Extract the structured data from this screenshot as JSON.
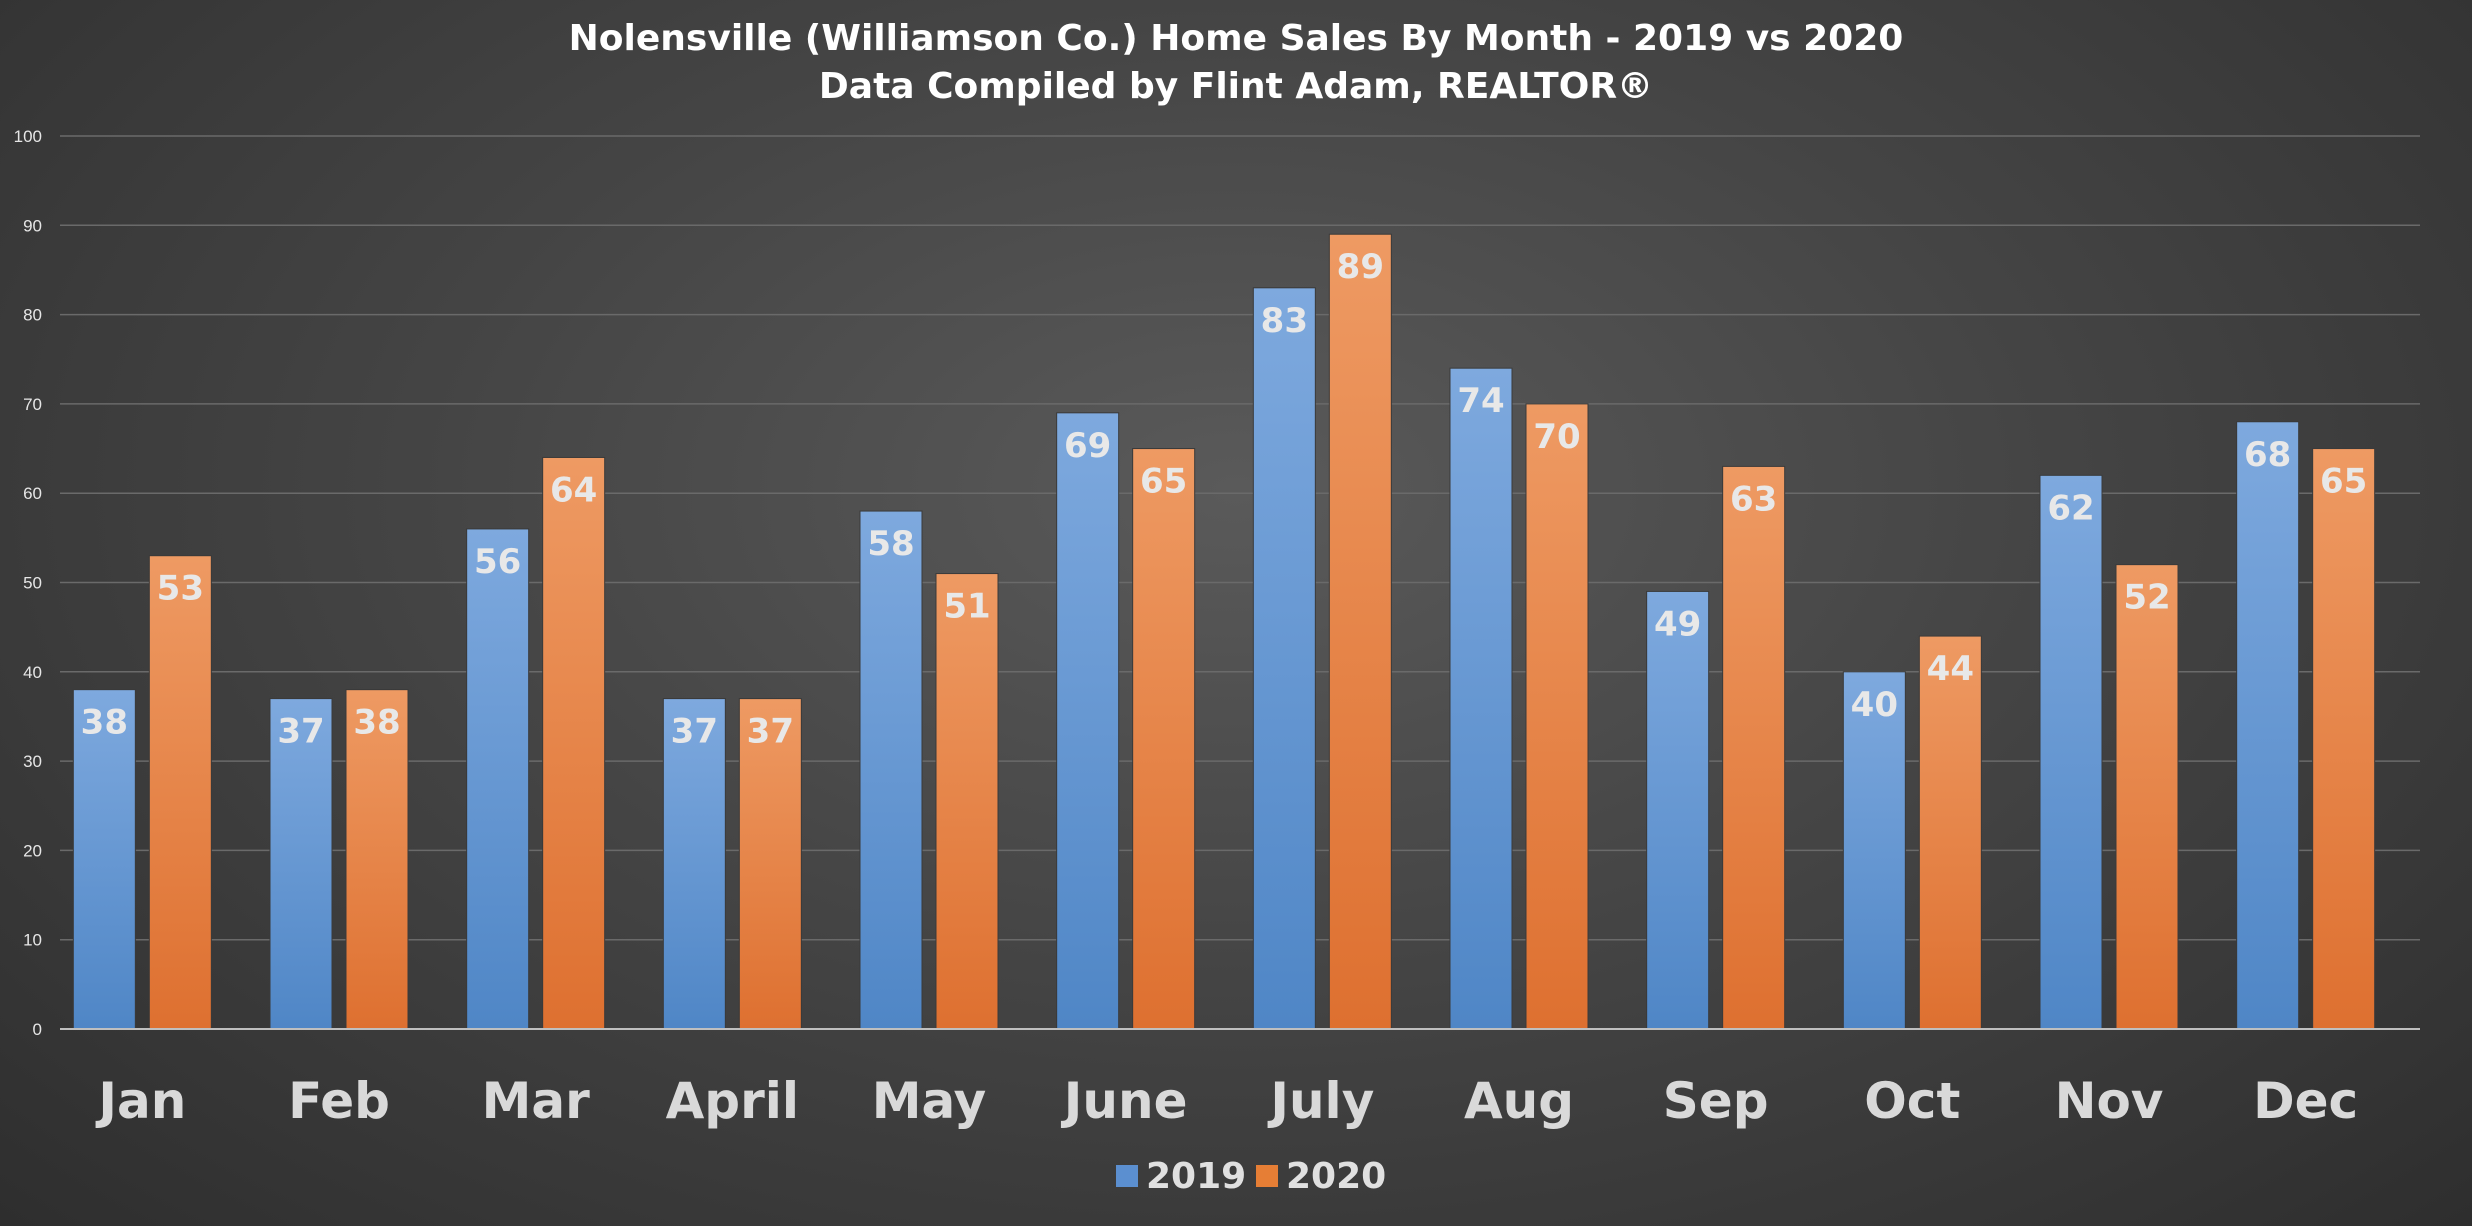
{
  "chart_data": {
    "type": "bar",
    "title": "Nolensville (Williamson Co.) Home Sales By Month - 2019 vs 2020",
    "subtitle": "Data Compiled by Flint Adam, REALTOR®",
    "categories": [
      "Jan",
      "Feb",
      "Mar",
      "April",
      "May",
      "June",
      "July",
      "Aug",
      "Sep",
      "Oct",
      "Nov",
      "Dec"
    ],
    "series": [
      {
        "name": "2019",
        "values": [
          38,
          37,
          56,
          37,
          58,
          69,
          83,
          74,
          49,
          40,
          62,
          68
        ],
        "color": "#5b8fd0"
      },
      {
        "name": "2020",
        "values": [
          53,
          38,
          64,
          37,
          51,
          65,
          89,
          70,
          63,
          44,
          52,
          65
        ],
        "color": "#e67e35"
      }
    ],
    "ylim": [
      0,
      100
    ],
    "yticks": [
      "0",
      "10",
      "20",
      "30",
      "40",
      "50",
      "60",
      "70",
      "80",
      "90",
      "100"
    ],
    "grid": true,
    "legend_position": "bottom",
    "data_labels": "inside-end"
  }
}
